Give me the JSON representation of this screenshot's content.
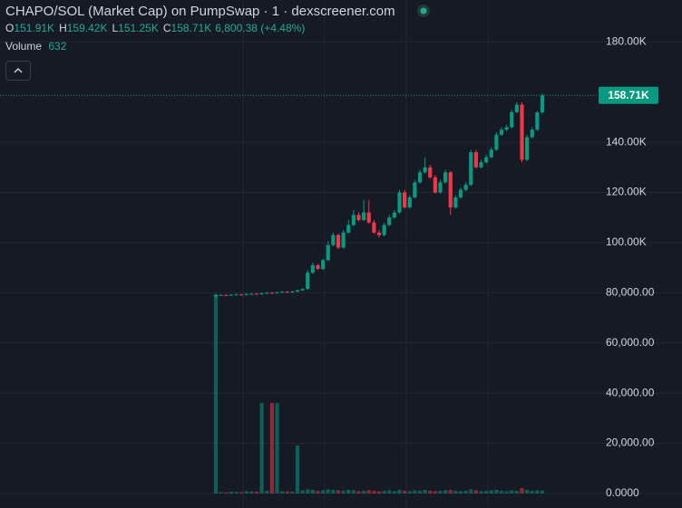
{
  "chart_data": {
    "type": "candlestick",
    "title": "CHAPO/SOL (Market Cap) on PumpSwap · 1 · dexscreener.com",
    "ohlc_legend": [
      {
        "key": "O",
        "value": "151.91K"
      },
      {
        "key": "H",
        "value": "159.42K"
      },
      {
        "key": "L",
        "value": "151.25K"
      },
      {
        "key": "C",
        "value": "158.71K"
      }
    ],
    "change": "6,800.38 (+4.48%)",
    "volume_label": "Volume",
    "volume_value": "632",
    "up_color": "#089981",
    "down_color": "#f23645",
    "ylim": [
      -5800,
      196700
    ],
    "yticks": [
      {
        "value": 0,
        "label": "0.0000"
      },
      {
        "value": 20000,
        "label": "20,000.00"
      },
      {
        "value": 40000,
        "label": "40,000.00"
      },
      {
        "value": 60000,
        "label": "60,000.00"
      },
      {
        "value": 80000,
        "label": "80,000.00"
      },
      {
        "value": 100000,
        "label": "100.00K"
      },
      {
        "value": 120000,
        "label": "120.00K"
      },
      {
        "value": 140000,
        "label": "140.00K"
      },
      {
        "value": 180000,
        "label": "180.00K"
      }
    ],
    "last_price": {
      "value": 158710,
      "label": "158.71K"
    },
    "open": [
      78500,
      79000,
      79100,
      79000,
      79200,
      79300,
      79200,
      79500,
      79600,
      79500,
      79800,
      80000,
      79900,
      80200,
      80400,
      80300,
      80500,
      81000,
      81500,
      88000,
      91000,
      89500,
      93000,
      99000,
      103000,
      98000,
      104000,
      107000,
      111000,
      109000,
      112000,
      108000,
      104000,
      103000,
      107000,
      110000,
      112000,
      120000,
      114000,
      118000,
      124000,
      128000,
      130000,
      126000,
      120000,
      124000,
      128000,
      114000,
      118000,
      121000,
      123000,
      136000,
      130000,
      132000,
      134000,
      137000,
      143000,
      145000,
      146000,
      152000,
      155000,
      133000,
      142000,
      145000,
      151910
    ],
    "high": [
      79500,
      79400,
      79400,
      79500,
      79600,
      79600,
      79800,
      79900,
      79900,
      80100,
      80300,
      80300,
      80500,
      80700,
      80700,
      80800,
      81300,
      81800,
      89000,
      92000,
      91500,
      93500,
      100500,
      104000,
      103500,
      105000,
      109000,
      113000,
      112000,
      117000,
      117000,
      109000,
      105000,
      108000,
      111000,
      113000,
      121000,
      121000,
      119000,
      125000,
      129000,
      134000,
      131000,
      127000,
      125000,
      129000,
      128500,
      119000,
      122000,
      124000,
      137000,
      137000,
      133000,
      135000,
      138000,
      144000,
      146000,
      147000,
      153000,
      156000,
      156000,
      143000,
      146000,
      152500,
      159420
    ],
    "low": [
      78000,
      78700,
      78700,
      78700,
      78900,
      78900,
      78900,
      79200,
      79200,
      79200,
      79500,
      79600,
      79600,
      79900,
      80000,
      80000,
      80200,
      80700,
      81200,
      87500,
      89000,
      89000,
      92500,
      98500,
      97500,
      97500,
      103500,
      106500,
      108500,
      108500,
      107500,
      103500,
      102000,
      102500,
      106500,
      109500,
      111500,
      113500,
      113500,
      117500,
      123500,
      127500,
      125500,
      119500,
      119500,
      123500,
      111000,
      113500,
      117500,
      120500,
      122500,
      129500,
      129500,
      131500,
      133500,
      136500,
      142500,
      144500,
      145500,
      151500,
      132000,
      132500,
      141500,
      144500,
      151250
    ],
    "close": [
      79000,
      79100,
      79000,
      79200,
      79300,
      79200,
      79500,
      79600,
      79500,
      79800,
      80000,
      79900,
      80200,
      80400,
      80300,
      80500,
      81000,
      81500,
      88000,
      91000,
      89500,
      93000,
      99000,
      103000,
      98000,
      104000,
      107000,
      111000,
      109000,
      112000,
      108000,
      104000,
      103000,
      107000,
      110000,
      112000,
      120000,
      114000,
      118000,
      124000,
      128000,
      130000,
      126000,
      120000,
      124000,
      128000,
      114000,
      118000,
      121000,
      123000,
      136000,
      130000,
      132000,
      134000,
      137000,
      143000,
      145000,
      146000,
      152000,
      155000,
      133000,
      142000,
      145000,
      151910,
      158710
    ],
    "volume": [
      44000,
      300,
      250,
      400,
      350,
      300,
      500,
      450,
      400,
      20000,
      600,
      20000,
      20000,
      500,
      450,
      400,
      10600,
      700,
      900,
      800,
      600,
      700,
      900,
      800,
      700,
      600,
      800,
      700,
      500,
      600,
      700,
      600,
      500,
      600,
      700,
      500,
      800,
      600,
      500,
      700,
      600,
      800,
      600,
      500,
      600,
      700,
      800,
      600,
      500,
      600,
      900,
      700,
      500,
      600,
      700,
      800,
      600,
      500,
      700,
      600,
      1200,
      800,
      600,
      700,
      632
    ]
  }
}
